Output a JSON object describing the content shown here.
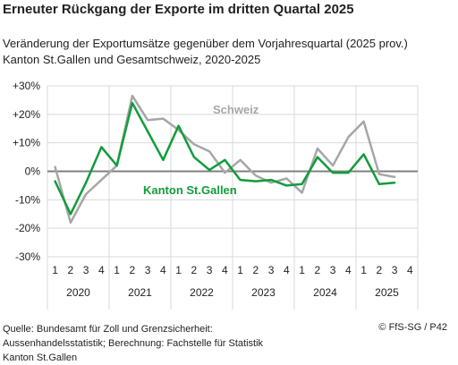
{
  "title": "Erneuter Rückgang der Exporte im dritten Quartal 2025",
  "subtitle_line1": "Veränderung der Exportumsätze gegenüber dem Vorjahresquartal (2025 prov.)",
  "subtitle_line2": "Kanton St.Gallen und Gesamtschweiz, 2020-2025",
  "footer": {
    "source_line1": "Quelle: Bundesamt für Zoll und Grenzsicherheit:",
    "source_line2": "Aussenhandelsstatistik; Berechnung: Fachstelle für Statistik",
    "source_line3": "Kanton St.Gallen",
    "credit": "© FfS-SG / P42"
  },
  "chart_data": {
    "type": "line",
    "quarters": [
      "1",
      "2",
      "3",
      "4"
    ],
    "years": [
      "2020",
      "2021",
      "2022",
      "2023",
      "2024",
      "2025"
    ],
    "ylim": [
      -30,
      30
    ],
    "yticks": [
      30,
      20,
      10,
      0,
      -10,
      -20,
      -30
    ],
    "ytick_labels": [
      "+30%",
      "+20%",
      "+10%",
      "0%",
      "-10%",
      "-20%",
      "-30%"
    ],
    "grid": true,
    "series": [
      {
        "name": "Schweiz",
        "color": "#a6a6a6",
        "values": [
          1.5,
          -18,
          -8,
          -3,
          2,
          26.5,
          18,
          18.5,
          14.5,
          9.5,
          7,
          -0.5,
          4,
          -1.5,
          -4,
          -2.5,
          -7.5,
          8,
          2,
          12,
          17.5,
          -1,
          -2,
          null
        ]
      },
      {
        "name": "Kanton St.Gallen",
        "color": "#119c3c",
        "values": [
          -3.5,
          -15,
          -4,
          8.5,
          2,
          24,
          14,
          4,
          16,
          5,
          0.5,
          4,
          -3,
          -3.5,
          -3,
          -5,
          -4.5,
          5,
          -0.5,
          -0.5,
          6,
          -4.5,
          -4,
          null
        ]
      }
    ]
  }
}
